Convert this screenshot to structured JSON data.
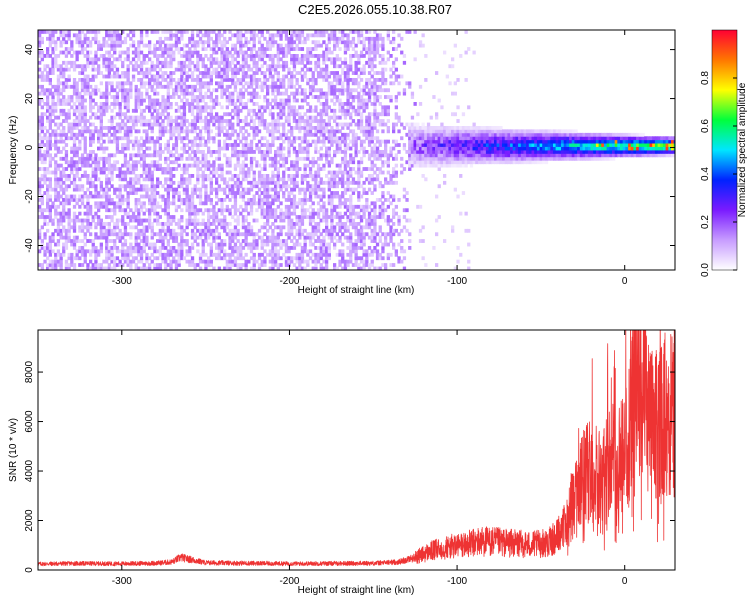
{
  "title": "C2E5.2026.055.10.38.R07",
  "colors": {
    "snr_line": "#ee3333",
    "axis": "#000000",
    "colormap": [
      "#ffffff",
      "#c79cff",
      "#7a1bff",
      "#0022ff",
      "#00e6ff",
      "#00ff3c",
      "#ffff00",
      "#ff7700",
      "#ff0033"
    ]
  },
  "chart_data": [
    {
      "type": "heatmap",
      "xlabel": "Height of straight line (km)",
      "ylabel": "Frequency (Hz)",
      "xlim": [
        -350,
        30
      ],
      "ylim": [
        -50,
        48
      ],
      "xticks": [
        -300,
        -200,
        -100,
        0
      ],
      "yticks": [
        -40,
        -20,
        0,
        20,
        40
      ],
      "colorbar": {
        "label": "Normalized spectral amplitude",
        "range": [
          0.0,
          1.0
        ],
        "ticks": [
          0.0,
          0.2,
          0.4,
          0.6,
          0.8
        ]
      },
      "features": {
        "noise_region_x": [
          -350,
          -125
        ],
        "signal_band_x": [
          -130,
          30
        ],
        "signal_center_frequency_hz": 0,
        "peak_amplitude": 0.95
      }
    },
    {
      "type": "line",
      "xlabel": "Height of straight line (km)",
      "ylabel": "SNR (10 * v/v)",
      "xlim": [
        -350,
        30
      ],
      "ylim": [
        0,
        9700
      ],
      "xticks": [
        -300,
        -200,
        -100,
        0
      ],
      "yticks": [
        0,
        2000,
        4000,
        6000,
        8000
      ],
      "series": [
        {
          "x": [
            -350,
            -330,
            -300,
            -280,
            -270,
            -265,
            -250,
            -200,
            -150,
            -135,
            -125,
            -115,
            -105,
            -95,
            -85,
            -75,
            -65,
            -55,
            -45,
            -38,
            -32,
            -28,
            -24,
            -20,
            -16,
            -12,
            -8,
            -4,
            0,
            3,
            6,
            8,
            10,
            14,
            18,
            22,
            26,
            30
          ],
          "y": [
            250,
            270,
            260,
            280,
            330,
            520,
            300,
            260,
            280,
            330,
            520,
            800,
            950,
            1050,
            1200,
            1150,
            1100,
            1050,
            1150,
            1500,
            2600,
            3300,
            3900,
            4300,
            3900,
            4100,
            4800,
            4300,
            4900,
            5700,
            7300,
            8300,
            7900,
            6200,
            5900,
            6300,
            6600,
            6400
          ]
        }
      ]
    }
  ]
}
